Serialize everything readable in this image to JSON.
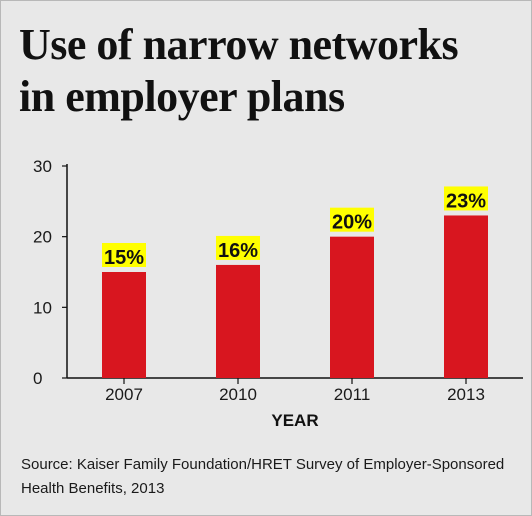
{
  "title_line1": "Use of narrow networks",
  "title_line2": "in employer plans",
  "source_line1": "Source: Kaiser Family Foundation/HRET Survey of Employer-Sponsored",
  "source_line2": "Health Benefits, 2013",
  "colors": {
    "background": "#e8e8e8",
    "bar": "#d8161f",
    "label_highlight": "#ffff00",
    "text": "#111111"
  },
  "chart_data": {
    "type": "bar",
    "categories": [
      "2007",
      "2010",
      "2011",
      "2013"
    ],
    "values": [
      15,
      16,
      20,
      23
    ],
    "data_labels": [
      "15%",
      "16%",
      "20%",
      "23%"
    ],
    "xlabel": "YEAR",
    "ylabel": "",
    "ylim": [
      0,
      30
    ],
    "yticks": [
      0,
      10,
      20,
      30
    ],
    "grid": false,
    "legend": "none"
  }
}
